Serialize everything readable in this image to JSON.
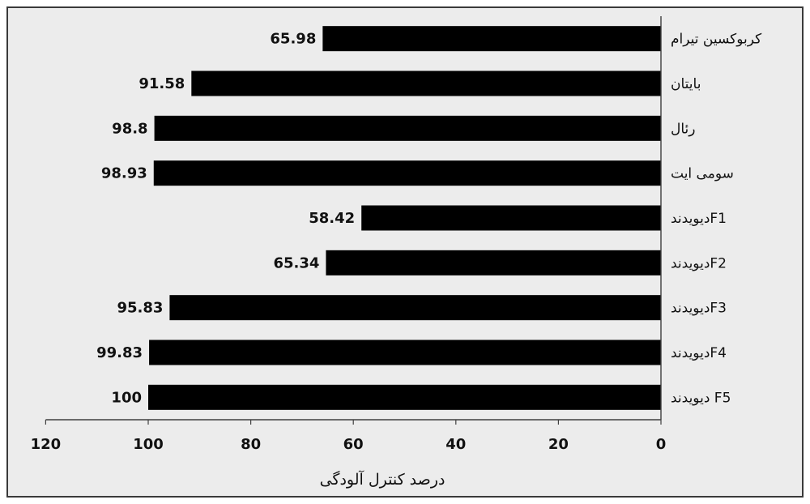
{
  "chart_data": {
    "type": "bar",
    "orientation": "horizontal",
    "categories": [
      "کربوکسین تیرام",
      "بایتان",
      "رئال",
      "سومی ایت",
      "دیویدندF1",
      "دیویدندF2",
      "دیویدندF3",
      "دیویدندF4",
      "دیویدند F5"
    ],
    "values": [
      65.98,
      91.58,
      98.8,
      98.93,
      58.42,
      65.34,
      95.83,
      99.83,
      100
    ],
    "value_labels": [
      "65.98",
      "91.58",
      "98.8",
      "98.93",
      "58.42",
      "65.34",
      "95.83",
      "99.83",
      "100"
    ],
    "x_ticks": [
      "120",
      "100",
      "80",
      "60",
      "40",
      "20",
      "0"
    ],
    "xlim": [
      0,
      120
    ],
    "x_reversed": true,
    "category_axis_side": "right",
    "xlabel": "درصد کنترل آلودگی",
    "ylabel": "",
    "title": "",
    "grid": false,
    "legend": "none",
    "colors": {
      "bar": "#000000",
      "background": "#ececec",
      "frame": "#3a3a3a"
    }
  }
}
